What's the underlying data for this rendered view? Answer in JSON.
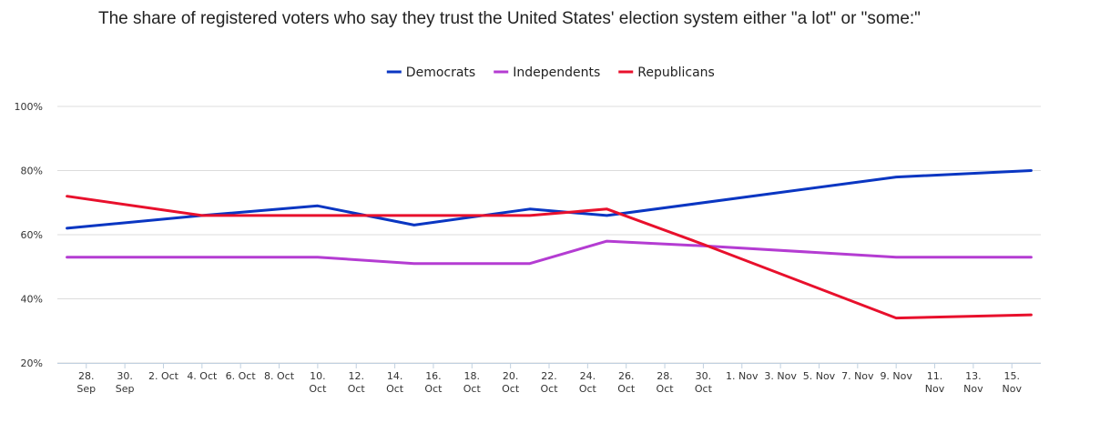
{
  "chart_data": {
    "type": "line",
    "title": "The share of registered voters who say they trust the United States' election system either \"a lot\" or \"some:\"",
    "xlabel": "",
    "ylabel": "",
    "ylim": [
      20,
      100
    ],
    "yticks": [
      20,
      40,
      60,
      80,
      100
    ],
    "ytick_labels": [
      "20%",
      "40%",
      "60%",
      "80%",
      "100%"
    ],
    "x_unit": "days since 27 Sep",
    "xlim": [
      -0.5,
      50.5
    ],
    "x_ticks": [
      {
        "x": 1,
        "lines": [
          "28.",
          "Sep"
        ]
      },
      {
        "x": 3,
        "lines": [
          "30.",
          "Sep"
        ]
      },
      {
        "x": 5,
        "lines": [
          "2. Oct"
        ]
      },
      {
        "x": 7,
        "lines": [
          "4. Oct"
        ]
      },
      {
        "x": 9,
        "lines": [
          "6. Oct"
        ]
      },
      {
        "x": 11,
        "lines": [
          "8. Oct"
        ]
      },
      {
        "x": 13,
        "lines": [
          "10.",
          "Oct"
        ]
      },
      {
        "x": 15,
        "lines": [
          "12.",
          "Oct"
        ]
      },
      {
        "x": 17,
        "lines": [
          "14.",
          "Oct"
        ]
      },
      {
        "x": 19,
        "lines": [
          "16.",
          "Oct"
        ]
      },
      {
        "x": 21,
        "lines": [
          "18.",
          "Oct"
        ]
      },
      {
        "x": 23,
        "lines": [
          "20.",
          "Oct"
        ]
      },
      {
        "x": 25,
        "lines": [
          "22.",
          "Oct"
        ]
      },
      {
        "x": 27,
        "lines": [
          "24.",
          "Oct"
        ]
      },
      {
        "x": 29,
        "lines": [
          "26.",
          "Oct"
        ]
      },
      {
        "x": 31,
        "lines": [
          "28.",
          "Oct"
        ]
      },
      {
        "x": 33,
        "lines": [
          "30.",
          "Oct"
        ]
      },
      {
        "x": 35,
        "lines": [
          "1. Nov"
        ]
      },
      {
        "x": 37,
        "lines": [
          "3. Nov"
        ]
      },
      {
        "x": 39,
        "lines": [
          "5. Nov"
        ]
      },
      {
        "x": 41,
        "lines": [
          "7. Nov"
        ]
      },
      {
        "x": 43,
        "lines": [
          "9. Nov"
        ]
      },
      {
        "x": 45,
        "lines": [
          "11.",
          "Nov"
        ]
      },
      {
        "x": 47,
        "lines": [
          "13.",
          "Nov"
        ]
      },
      {
        "x": 49,
        "lines": [
          "15.",
          "Nov"
        ]
      }
    ],
    "legend_position": "top-center",
    "grid": true,
    "series": [
      {
        "name": "Democrats",
        "color": "#0a36c2",
        "points": [
          [
            0,
            62
          ],
          [
            7,
            66
          ],
          [
            13,
            69
          ],
          [
            18,
            63
          ],
          [
            24,
            68
          ],
          [
            28,
            66
          ],
          [
            43,
            78
          ],
          [
            50,
            80
          ]
        ]
      },
      {
        "name": "Independents",
        "color": "#b43cd2",
        "points": [
          [
            0,
            53
          ],
          [
            13,
            53
          ],
          [
            18,
            51
          ],
          [
            24,
            51
          ],
          [
            28,
            58
          ],
          [
            33,
            56.5
          ],
          [
            43,
            53
          ],
          [
            50,
            53
          ]
        ]
      },
      {
        "name": "Republicans",
        "color": "#e8102c",
        "points": [
          [
            0,
            72
          ],
          [
            7,
            66
          ],
          [
            24,
            66
          ],
          [
            28,
            68
          ],
          [
            33,
            57
          ],
          [
            43,
            34
          ],
          [
            50,
            35
          ]
        ]
      }
    ]
  }
}
